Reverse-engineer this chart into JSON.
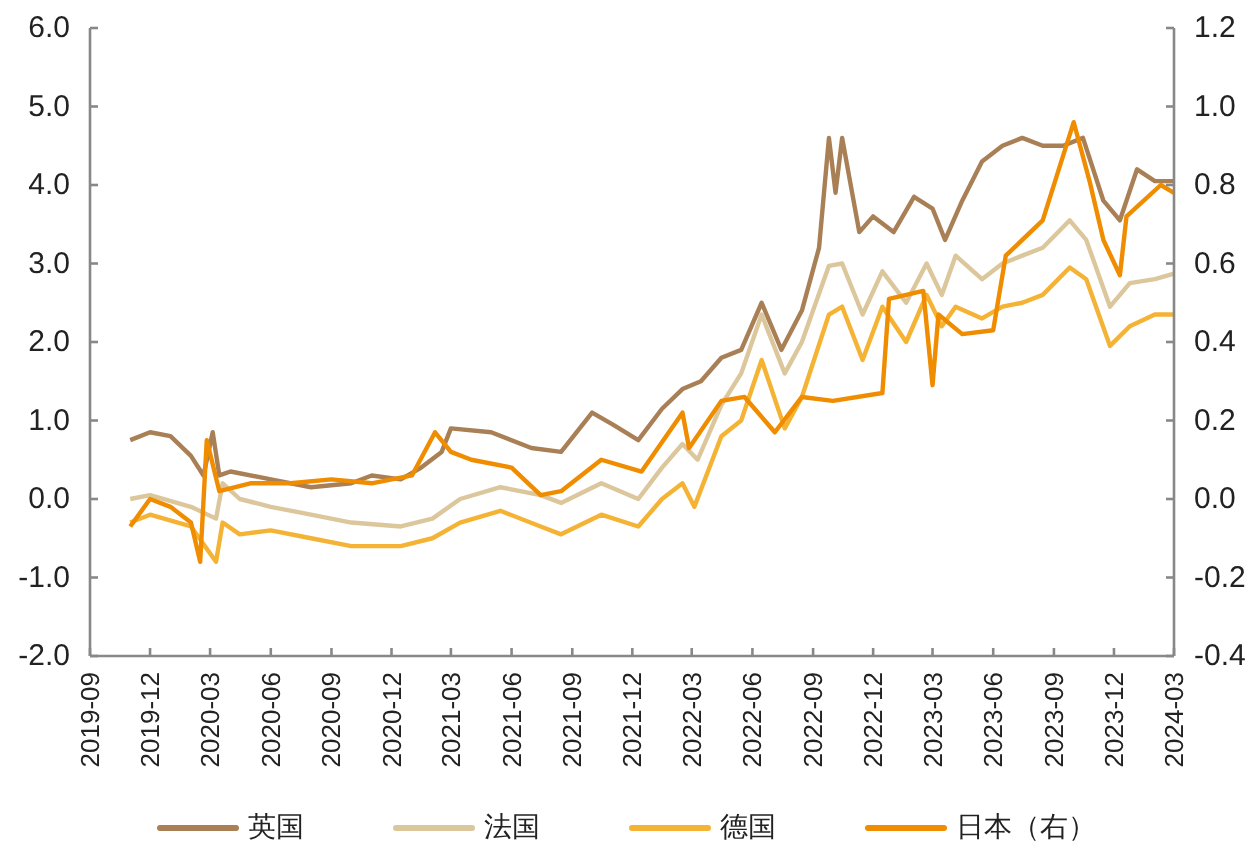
{
  "chart_data": {
    "type": "line",
    "legend": "bottom",
    "grid": false,
    "line_style": "solid",
    "marker": "none",
    "xlim": [
      "2019-09",
      "2024-03"
    ],
    "xticks": [
      "2019-09",
      "2019-12",
      "2020-03",
      "2020-06",
      "2020-09",
      "2020-12",
      "2021-03",
      "2021-06",
      "2021-09",
      "2021-12",
      "2022-03",
      "2022-06",
      "2022-09",
      "2022-12",
      "2023-03",
      "2023-06",
      "2023-09",
      "2023-12",
      "2024-03"
    ],
    "ylim": [
      -2,
      6
    ],
    "yticks": [
      {
        "value": -2,
        "label": "-2.0"
      },
      {
        "value": -1,
        "label": "-1.0"
      },
      {
        "value": 0,
        "label": "0.0"
      },
      {
        "value": 1,
        "label": "1.0"
      },
      {
        "value": 2,
        "label": "2.0"
      },
      {
        "value": 3,
        "label": "3.0"
      },
      {
        "value": 4,
        "label": "4.0"
      },
      {
        "value": 5,
        "label": "5.0"
      },
      {
        "value": 6,
        "label": "6.0"
      }
    ],
    "y2lim": [
      -0.4,
      1.2
    ],
    "y2ticks": [
      {
        "value": -0.4,
        "label": "-0.4"
      },
      {
        "value": -0.2,
        "label": "-0.2"
      },
      {
        "value": 0,
        "label": "0.0"
      },
      {
        "value": 0.2,
        "label": "0.2"
      },
      {
        "value": 0.4,
        "label": "0.4"
      },
      {
        "value": 0.6,
        "label": "0.6"
      },
      {
        "value": 0.8,
        "label": "0.8"
      },
      {
        "value": 1,
        "label": "1.0"
      },
      {
        "value": 1.2,
        "label": "1.2"
      }
    ],
    "series": [
      {
        "name": "英国",
        "color": "#a97f56",
        "x": [
          "2019-11-01",
          "2019-12-01",
          "2020-01-01",
          "2020-02-01",
          "2020-02-20",
          "2020-03-05",
          "2020-03-15",
          "2020-04-01",
          "2020-06-01",
          "2020-08-01",
          "2020-10-01",
          "2020-11-01",
          "2020-12-15",
          "2021-01-15",
          "2021-02-15",
          "2021-03-01",
          "2021-05-01",
          "2021-07-01",
          "2021-08-15",
          "2021-10-01",
          "2021-11-01",
          "2021-12-10",
          "2022-01-15",
          "2022-02-15",
          "2022-03-15",
          "2022-04-15",
          "2022-05-15",
          "2022-06-15",
          "2022-07-15",
          "2022-08-15",
          "2022-09-10",
          "2022-09-25",
          "2022-10-05",
          "2022-10-15",
          "2022-11-10",
          "2022-12-01",
          "2023-01-01",
          "2023-02-01",
          "2023-03-01",
          "2023-03-20",
          "2023-04-15",
          "2023-05-15",
          "2023-06-15",
          "2023-07-15",
          "2023-08-15",
          "2023-09-15",
          "2023-10-15",
          "2023-11-15",
          "2023-12-10",
          "2024-01-05",
          "2024-02-01",
          "2024-03-01"
        ],
        "values": [
          0.75,
          0.85,
          0.8,
          0.55,
          0.3,
          0.85,
          0.3,
          0.35,
          0.25,
          0.15,
          0.2,
          0.3,
          0.25,
          0.4,
          0.6,
          0.9,
          0.85,
          0.65,
          0.6,
          1.1,
          0.95,
          0.75,
          1.15,
          1.4,
          1.5,
          1.8,
          1.9,
          2.5,
          1.9,
          2.4,
          3.2,
          4.6,
          3.9,
          4.6,
          3.4,
          3.6,
          3.4,
          3.85,
          3.7,
          3.3,
          3.8,
          4.3,
          4.5,
          4.6,
          4.5,
          4.5,
          4.6,
          3.8,
          3.55,
          4.2,
          4.05,
          4.05
        ]
      },
      {
        "name": "法国",
        "color": "#dcc69c",
        "x": [
          "2019-11-01",
          "2019-12-01",
          "2020-02-01",
          "2020-03-10",
          "2020-03-20",
          "2020-04-15",
          "2020-06-01",
          "2020-08-01",
          "2020-10-01",
          "2020-12-15",
          "2021-02-01",
          "2021-03-15",
          "2021-05-15",
          "2021-07-15",
          "2021-08-15",
          "2021-10-15",
          "2021-12-10",
          "2022-01-15",
          "2022-02-15",
          "2022-03-10",
          "2022-04-15",
          "2022-05-15",
          "2022-06-15",
          "2022-07-20",
          "2022-08-15",
          "2022-09-25",
          "2022-10-15",
          "2022-11-15",
          "2022-12-15",
          "2023-01-20",
          "2023-02-20",
          "2023-03-15",
          "2023-04-05",
          "2023-05-15",
          "2023-06-15",
          "2023-07-15",
          "2023-08-15",
          "2023-09-25",
          "2023-10-20",
          "2023-11-25",
          "2023-12-25",
          "2024-02-01",
          "2024-03-01"
        ],
        "values": [
          0.0,
          0.05,
          -0.1,
          -0.25,
          0.2,
          0.0,
          -0.1,
          -0.2,
          -0.3,
          -0.35,
          -0.25,
          0.0,
          0.15,
          0.05,
          -0.05,
          0.2,
          0.0,
          0.4,
          0.7,
          0.5,
          1.2,
          1.6,
          2.35,
          1.6,
          2.0,
          2.97,
          3.0,
          2.35,
          2.9,
          2.5,
          3.0,
          2.6,
          3.1,
          2.8,
          3.0,
          3.1,
          3.2,
          3.55,
          3.3,
          2.45,
          2.75,
          2.8,
          2.87
        ]
      },
      {
        "name": "德国",
        "color": "#f5b335",
        "x": [
          "2019-11-01",
          "2019-12-01",
          "2020-02-01",
          "2020-03-10",
          "2020-03-20",
          "2020-04-15",
          "2020-06-01",
          "2020-08-01",
          "2020-10-01",
          "2020-12-15",
          "2021-02-01",
          "2021-03-15",
          "2021-05-15",
          "2021-07-15",
          "2021-08-15",
          "2021-10-15",
          "2021-12-10",
          "2022-01-15",
          "2022-02-15",
          "2022-03-05",
          "2022-04-15",
          "2022-05-15",
          "2022-06-15",
          "2022-07-20",
          "2022-08-15",
          "2022-09-25",
          "2022-10-15",
          "2022-11-15",
          "2022-12-15",
          "2023-01-20",
          "2023-02-20",
          "2023-03-15",
          "2023-04-05",
          "2023-05-15",
          "2023-06-15",
          "2023-07-15",
          "2023-08-15",
          "2023-09-25",
          "2023-10-20",
          "2023-11-25",
          "2023-12-25",
          "2024-02-01",
          "2024-03-01"
        ],
        "values": [
          -0.3,
          -0.2,
          -0.35,
          -0.8,
          -0.3,
          -0.45,
          -0.4,
          -0.5,
          -0.6,
          -0.6,
          -0.5,
          -0.3,
          -0.15,
          -0.35,
          -0.45,
          -0.2,
          -0.35,
          0.0,
          0.2,
          -0.1,
          0.8,
          1.0,
          1.77,
          0.9,
          1.3,
          2.35,
          2.45,
          1.77,
          2.45,
          2.0,
          2.6,
          2.2,
          2.45,
          2.3,
          2.45,
          2.5,
          2.6,
          2.95,
          2.8,
          1.95,
          2.2,
          2.35,
          2.35
        ]
      },
      {
        "name": "日本（右）",
        "color": "#f08c00",
        "axis": "y2",
        "x": [
          "2019-11-01",
          "2019-12-01",
          "2020-01-01",
          "2020-02-01",
          "2020-02-15",
          "2020-02-25",
          "2020-03-15",
          "2020-05-01",
          "2020-07-01",
          "2020-09-01",
          "2020-11-01",
          "2021-01-01",
          "2021-02-05",
          "2021-03-01",
          "2021-04-01",
          "2021-06-01",
          "2021-07-15",
          "2021-08-15",
          "2021-10-15",
          "2021-12-15",
          "2022-02-15",
          "2022-02-25",
          "2022-04-15",
          "2022-05-20",
          "2022-07-05",
          "2022-08-15",
          "2022-10-01",
          "2022-12-15",
          "2022-12-25",
          "2023-02-15",
          "2023-03-01",
          "2023-03-10",
          "2023-04-15",
          "2023-06-01",
          "2023-06-20",
          "2023-08-15",
          "2023-10-01",
          "2023-10-25",
          "2023-11-15",
          "2023-12-10",
          "2023-12-20",
          "2024-02-10",
          "2024-03-01"
        ],
        "values": [
          -0.07,
          0.0,
          -0.02,
          -0.06,
          -0.16,
          0.15,
          0.02,
          0.04,
          0.04,
          0.05,
          0.04,
          0.06,
          0.17,
          0.12,
          0.1,
          0.08,
          0.01,
          0.02,
          0.1,
          0.07,
          0.22,
          0.13,
          0.25,
          0.26,
          0.17,
          0.26,
          0.25,
          0.27,
          0.51,
          0.53,
          0.29,
          0.47,
          0.42,
          0.43,
          0.62,
          0.71,
          0.96,
          0.81,
          0.66,
          0.57,
          0.72,
          0.8,
          0.78
        ]
      }
    ]
  }
}
